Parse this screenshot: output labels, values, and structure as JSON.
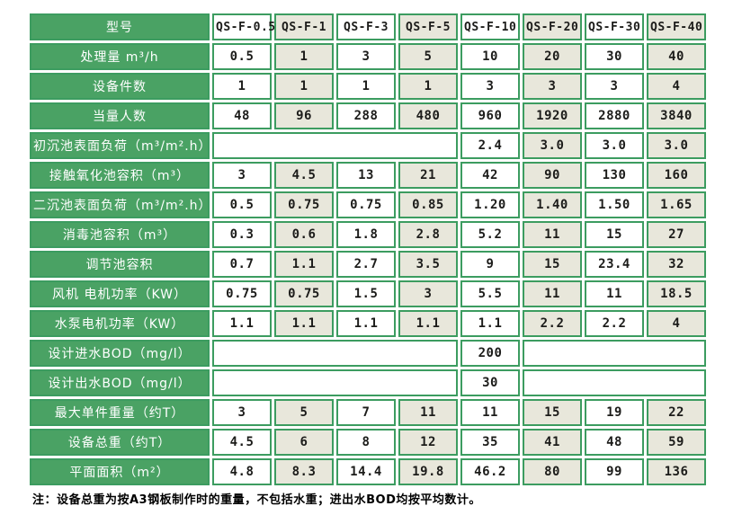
{
  "colors": {
    "green": "#4aa264",
    "green_border": "#3c9c60",
    "beige": "#e8e7db",
    "text": "#1c1c1a"
  },
  "table": {
    "corner_label": "型号",
    "models": [
      "QS-F-0.5",
      "QS-F-1",
      "QS-F-3",
      "QS-F-5",
      "QS-F-10",
      "QS-F-20",
      "QS-F-30",
      "QS-F-40"
    ],
    "rows": [
      {
        "label": "处理量 m³/h",
        "cells": [
          {
            "t": "0.5"
          },
          {
            "t": "1"
          },
          {
            "t": "3"
          },
          {
            "t": "5"
          },
          {
            "t": "10"
          },
          {
            "t": "20"
          },
          {
            "t": "30"
          },
          {
            "t": "40"
          }
        ]
      },
      {
        "label": "设备件数",
        "cells": [
          {
            "t": "1"
          },
          {
            "t": "1"
          },
          {
            "t": "1"
          },
          {
            "t": "1"
          },
          {
            "t": "3"
          },
          {
            "t": "3"
          },
          {
            "t": "3"
          },
          {
            "t": "4"
          }
        ]
      },
      {
        "label": "当量人数",
        "cells": [
          {
            "t": "48"
          },
          {
            "t": "96"
          },
          {
            "t": "288"
          },
          {
            "t": "480"
          },
          {
            "t": "960"
          },
          {
            "t": "1920"
          },
          {
            "t": "2880"
          },
          {
            "t": "3840"
          }
        ]
      },
      {
        "label": "初沉池表面负荷（m³/m².h）",
        "cells": [
          {
            "t": "",
            "span": 4,
            "bg": "white"
          },
          {
            "t": "2.4"
          },
          {
            "t": "3.0"
          },
          {
            "t": "3.0"
          },
          {
            "t": "3.0"
          }
        ]
      },
      {
        "label": "接触氧化池容积（m³）",
        "cells": [
          {
            "t": "3"
          },
          {
            "t": "4.5"
          },
          {
            "t": "13"
          },
          {
            "t": "21"
          },
          {
            "t": "42"
          },
          {
            "t": "90"
          },
          {
            "t": "130"
          },
          {
            "t": "160"
          }
        ]
      },
      {
        "label": "二沉池表面负荷（m³/m².h）",
        "cells": [
          {
            "t": "0.5"
          },
          {
            "t": "0.75"
          },
          {
            "t": "0.75"
          },
          {
            "t": "0.85"
          },
          {
            "t": "1.20"
          },
          {
            "t": "1.40"
          },
          {
            "t": "1.50"
          },
          {
            "t": "1.65"
          }
        ]
      },
      {
        "label": "消毒池容积（m³）",
        "cells": [
          {
            "t": "0.3"
          },
          {
            "t": "0.6"
          },
          {
            "t": "1.8"
          },
          {
            "t": "2.8"
          },
          {
            "t": "5.2"
          },
          {
            "t": "11"
          },
          {
            "t": "15"
          },
          {
            "t": "27"
          }
        ]
      },
      {
        "label": "调节池容积",
        "cells": [
          {
            "t": "0.7"
          },
          {
            "t": "1.1"
          },
          {
            "t": "2.7"
          },
          {
            "t": "3.5"
          },
          {
            "t": "9"
          },
          {
            "t": "15"
          },
          {
            "t": "23.4"
          },
          {
            "t": "32"
          }
        ]
      },
      {
        "label": "风机 电机功率（KW）",
        "cells": [
          {
            "t": "0.75"
          },
          {
            "t": "0.75"
          },
          {
            "t": "1.5"
          },
          {
            "t": "3"
          },
          {
            "t": "5.5"
          },
          {
            "t": "11"
          },
          {
            "t": "11"
          },
          {
            "t": "18.5"
          }
        ]
      },
      {
        "label": "水泵电机功率（KW）",
        "cells": [
          {
            "t": "1.1"
          },
          {
            "t": "1.1"
          },
          {
            "t": "1.1"
          },
          {
            "t": "1.1"
          },
          {
            "t": "1.1"
          },
          {
            "t": "2.2"
          },
          {
            "t": "2.2"
          },
          {
            "t": "4"
          }
        ]
      },
      {
        "label": "设计进水BOD（mg/l）",
        "cells": [
          {
            "t": "",
            "span": 4,
            "bg": "white"
          },
          {
            "t": "200",
            "bg": "white"
          },
          {
            "t": "",
            "span": 3,
            "bg": "white"
          }
        ]
      },
      {
        "label": "设计出水BOD（mg/l）",
        "cells": [
          {
            "t": "",
            "span": 4,
            "bg": "white"
          },
          {
            "t": "30",
            "bg": "white"
          },
          {
            "t": "",
            "span": 3,
            "bg": "white"
          }
        ]
      },
      {
        "label": "最大单件重量（约T）",
        "cells": [
          {
            "t": "3"
          },
          {
            "t": "5"
          },
          {
            "t": "7"
          },
          {
            "t": "11"
          },
          {
            "t": "11"
          },
          {
            "t": "15"
          },
          {
            "t": "19"
          },
          {
            "t": "22"
          }
        ]
      },
      {
        "label": "设备总重（约T）",
        "cells": [
          {
            "t": "4.5"
          },
          {
            "t": "6"
          },
          {
            "t": "8"
          },
          {
            "t": "12"
          },
          {
            "t": "35"
          },
          {
            "t": "41"
          },
          {
            "t": "48"
          },
          {
            "t": "59"
          }
        ]
      },
      {
        "label": "平面面积（m²）",
        "cells": [
          {
            "t": "4.8"
          },
          {
            "t": "8.3"
          },
          {
            "t": "14.4"
          },
          {
            "t": "19.8"
          },
          {
            "t": "46.2"
          },
          {
            "t": "80"
          },
          {
            "t": "99"
          },
          {
            "t": "136"
          }
        ]
      }
    ]
  },
  "note": "注：设备总重为按A3钢板制作时的重量，不包括水重；进出水BOD均按平均数计。"
}
